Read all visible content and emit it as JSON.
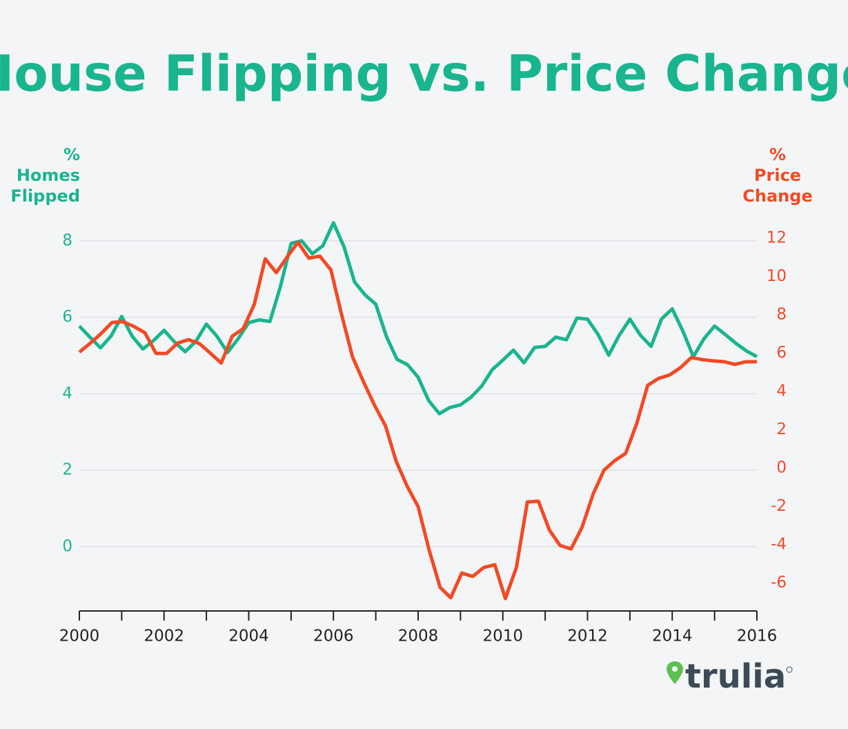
{
  "chart_data": {
    "type": "line",
    "title": "House Flipping vs. Price Change",
    "y_label": [
      "%",
      "Homes",
      "Flipped"
    ],
    "y2_label": [
      "%",
      "Price",
      "Change"
    ],
    "logo": "trulia",
    "xlim": [
      2000,
      2016
    ],
    "xticks": [
      2000,
      2002,
      2004,
      2006,
      2008,
      2010,
      2012,
      2014,
      2016
    ],
    "xminor_ticks": [
      2001,
      2003,
      2005,
      2007,
      2009,
      2011,
      2013,
      2015
    ],
    "ylim": [
      -1.68,
      8.7
    ],
    "yticks": [
      0,
      2,
      4,
      6,
      8
    ],
    "y2lim": [
      -7.46,
      13.26
    ],
    "y2ticks": [
      -6,
      -4,
      -2,
      0,
      2,
      4,
      6,
      8,
      10,
      12
    ],
    "grid": true,
    "series": [
      {
        "color": "#19b58f",
        "axis": "y",
        "x": [
          2000,
          2000.25,
          2000.5,
          2000.75,
          2001,
          2001.25,
          2001.5,
          2001.75,
          2002,
          2002.25,
          2002.5,
          2002.75,
          2003,
          2003.25,
          2003.5,
          2003.75,
          2004,
          2004.25,
          2004.5,
          2004.75,
          2005,
          2005.25,
          2005.5,
          2005.75,
          2006,
          2006.25,
          2006.5,
          2006.75,
          2007,
          2007.25,
          2007.5,
          2007.75,
          2008,
          2008.25,
          2008.5,
          2008.75,
          2009,
          2009.25,
          2009.5,
          2009.75,
          2010,
          2010.25,
          2010.5,
          2010.75,
          2011,
          2011.25,
          2011.5,
          2011.75,
          2012,
          2012.25,
          2012.5,
          2012.75,
          2013,
          2013.25,
          2013.5,
          2013.75,
          2014,
          2014.25,
          2014.5,
          2014.75,
          2015,
          2015.25,
          2015.5,
          2015.75,
          2016
        ],
        "values": [
          5.77,
          5.48,
          5.2,
          5.51,
          6.02,
          5.5,
          5.17,
          5.39,
          5.66,
          5.35,
          5.1,
          5.37,
          5.82,
          5.5,
          5.08,
          5.44,
          5.86,
          5.93,
          5.89,
          6.81,
          7.93,
          8.0,
          7.66,
          7.87,
          8.47,
          7.84,
          6.92,
          6.58,
          6.34,
          5.5,
          4.9,
          4.76,
          4.43,
          3.82,
          3.48,
          3.64,
          3.71,
          3.91,
          4.2,
          4.63,
          4.88,
          5.14,
          4.81,
          5.21,
          5.24,
          5.48,
          5.41,
          5.98,
          5.95,
          5.55,
          5.01,
          5.53,
          5.95,
          5.53,
          5.24,
          5.96,
          6.22,
          5.64,
          4.97,
          5.44,
          5.77,
          5.55,
          5.32,
          5.12,
          4.97
        ]
      },
      {
        "color": "#f24a24",
        "axis": "y2",
        "x": [
          2000.0,
          2000.26,
          2000.52,
          2000.77,
          2001.03,
          2001.29,
          2001.55,
          2001.81,
          2002.06,
          2002.32,
          2002.58,
          2002.84,
          2003.1,
          2003.35,
          2003.61,
          2003.87,
          2004.13,
          2004.39,
          2004.65,
          2004.9,
          2005.16,
          2005.42,
          2005.68,
          2005.94,
          2006.19,
          2006.45,
          2006.71,
          2006.97,
          2007.23,
          2007.48,
          2007.74,
          2008.0,
          2008.26,
          2008.52,
          2008.77,
          2009.03,
          2009.29,
          2009.55,
          2009.81,
          2010.06,
          2010.32,
          2010.58,
          2010.84,
          2011.1,
          2011.35,
          2011.61,
          2011.87,
          2012.13,
          2012.39,
          2012.65,
          2012.9,
          2013.16,
          2013.42,
          2013.68,
          2013.94,
          2014.19,
          2014.45,
          2014.71,
          2014.97,
          2015.23,
          2015.48,
          2015.74,
          2016.0
        ],
        "values": [
          6.05,
          6.52,
          7.03,
          7.6,
          7.64,
          7.39,
          7.06,
          5.98,
          5.98,
          6.52,
          6.7,
          6.49,
          5.98,
          5.48,
          6.88,
          7.28,
          8.54,
          10.92,
          10.2,
          10.99,
          11.78,
          10.95,
          11.06,
          10.34,
          8.04,
          5.8,
          4.5,
          3.28,
          2.2,
          0.36,
          -0.94,
          -2.02,
          -4.29,
          -6.23,
          -6.77,
          -5.48,
          -5.66,
          -5.19,
          -5.05,
          -6.81,
          -5.19,
          -1.77,
          -1.73,
          -3.24,
          -4.04,
          -4.22,
          -3.1,
          -1.37,
          -0.11,
          0.4,
          0.76,
          2.31,
          4.32,
          4.68,
          4.86,
          5.23,
          5.77,
          5.66,
          5.59,
          5.55,
          5.41,
          5.55,
          5.55
        ]
      }
    ]
  }
}
